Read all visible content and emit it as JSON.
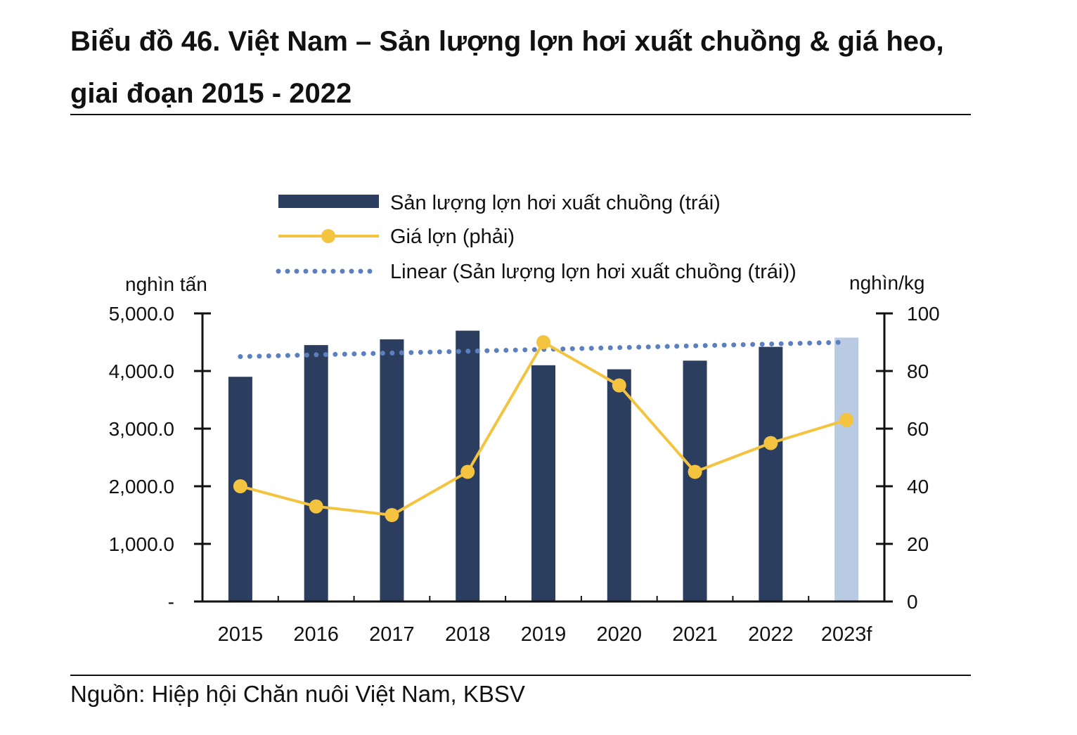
{
  "title": "Biểu đồ 46. Việt Nam – Sản lượng lợn hơi xuất chuồng & giá heo, giai đoạn 2015 - 2022",
  "source": "Nguồn: Hiệp hội Chăn nuôi Việt Nam, KBSV",
  "colors": {
    "bar": "#2c3e5f",
    "bar_forecast": "#b9cae3",
    "price_line": "#f4c33f",
    "linear_trend": "#5b7fbf"
  },
  "chart_data": {
    "type": "bar",
    "categories": [
      "2015",
      "2016",
      "2017",
      "2018",
      "2019",
      "2020",
      "2021",
      "2022",
      "2023f"
    ],
    "series": [
      {
        "name": "Sản lượng lợn hơi xuất chuồng (trái)",
        "type": "bar",
        "axis": "left",
        "values": [
          3900,
          4450,
          4550,
          4700,
          4100,
          4030,
          4180,
          4420,
          4580
        ]
      },
      {
        "name": "Giá lợn (phải)",
        "type": "line",
        "axis": "right",
        "values": [
          40,
          33,
          30,
          45,
          90,
          75,
          45,
          55,
          63
        ]
      },
      {
        "name": "Linear (Sản lượng lợn hơi xuất chuồng (trái))",
        "type": "trend",
        "axis": "left",
        "values": [
          4250,
          4281,
          4312,
          4344,
          4375,
          4406,
          4437,
          4469,
          4500
        ]
      }
    ],
    "ylabel_left": "nghìn tấn",
    "ylabel_right": "nghìn/kg",
    "ylim_left": [
      0,
      5000
    ],
    "ylim_right": [
      0,
      100
    ],
    "yticks_left": [
      "-",
      "1,000.0",
      "2,000.0",
      "3,000.0",
      "4,000.0",
      "5,000.0"
    ],
    "yticks_right": [
      "0",
      "20",
      "40",
      "60",
      "80",
      "100"
    ],
    "legend_position": "top",
    "grid": false
  }
}
